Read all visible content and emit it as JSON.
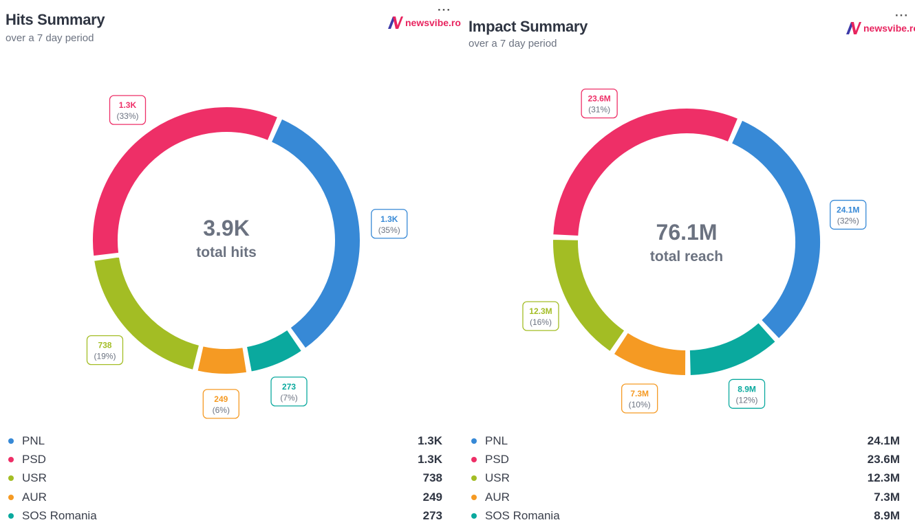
{
  "colors": {
    "PNL": "#3789d6",
    "PSD": "#ee2f67",
    "USR": "#a3bd24",
    "AUR": "#f59a23",
    "SOS Romania": "#0aa99e"
  },
  "brand": {
    "name": "newsvibe.ro",
    "logo_icon": "newsvibe-n-logo"
  },
  "charts": {
    "hits": {
      "title": "Hits Summary",
      "subtitle": "over a 7 day period",
      "center_value": "3.9K",
      "center_label": "total hits"
    },
    "impact": {
      "title": "Impact Summary",
      "subtitle": "over a 7 day period",
      "center_value": "76.1M",
      "center_label": "total reach"
    }
  },
  "chart_data": [
    {
      "type": "pie",
      "title": "Hits Summary",
      "subtitle": "over a 7 day period",
      "center_value": "3.9K",
      "center_label": "total hits",
      "slice_order": [
        "PNL",
        "SOS Romania",
        "AUR",
        "USR",
        "PSD"
      ],
      "slices": [
        {
          "name": "PNL",
          "value": 1300,
          "label": "1.3K",
          "percent": "(35%)"
        },
        {
          "name": "SOS Romania",
          "value": 273,
          "label": "273",
          "percent": "(7%)"
        },
        {
          "name": "AUR",
          "value": 249,
          "label": "249",
          "percent": "(6%)"
        },
        {
          "name": "USR",
          "value": 738,
          "label": "738",
          "percent": "(19%)"
        },
        {
          "name": "PSD",
          "value": 1300,
          "label": "1.3K",
          "percent": "(33%)"
        }
      ],
      "legend": [
        {
          "name": "PNL",
          "value": "1.3K"
        },
        {
          "name": "PSD",
          "value": "1.3K"
        },
        {
          "name": "USR",
          "value": "738"
        },
        {
          "name": "AUR",
          "value": "249"
        },
        {
          "name": "SOS Romania",
          "value": "273"
        }
      ],
      "legend_position": "bottom"
    },
    {
      "type": "pie",
      "title": "Impact Summary",
      "subtitle": "over a 7 day period",
      "center_value": "76.1M",
      "center_label": "total reach",
      "slices": [
        {
          "name": "PNL",
          "value": 24.1,
          "label": "24.1M",
          "percent": "(32%)"
        },
        {
          "name": "SOS Romania",
          "value": 8.9,
          "label": "8.9M",
          "percent": "(12%)"
        },
        {
          "name": "AUR",
          "value": 7.3,
          "label": "7.3M",
          "percent": "(10%)"
        },
        {
          "name": "USR",
          "value": 12.3,
          "label": "12.3M",
          "percent": "(16%)"
        },
        {
          "name": "PSD",
          "value": 23.6,
          "label": "23.6M",
          "percent": "(31%)"
        }
      ],
      "legend": [
        {
          "name": "PNL",
          "value": "24.1M"
        },
        {
          "name": "PSD",
          "value": "23.6M"
        },
        {
          "name": "USR",
          "value": "12.3M"
        },
        {
          "name": "AUR",
          "value": "7.3M"
        },
        {
          "name": "SOS Romania",
          "value": "8.9M"
        }
      ],
      "legend_position": "bottom"
    }
  ]
}
